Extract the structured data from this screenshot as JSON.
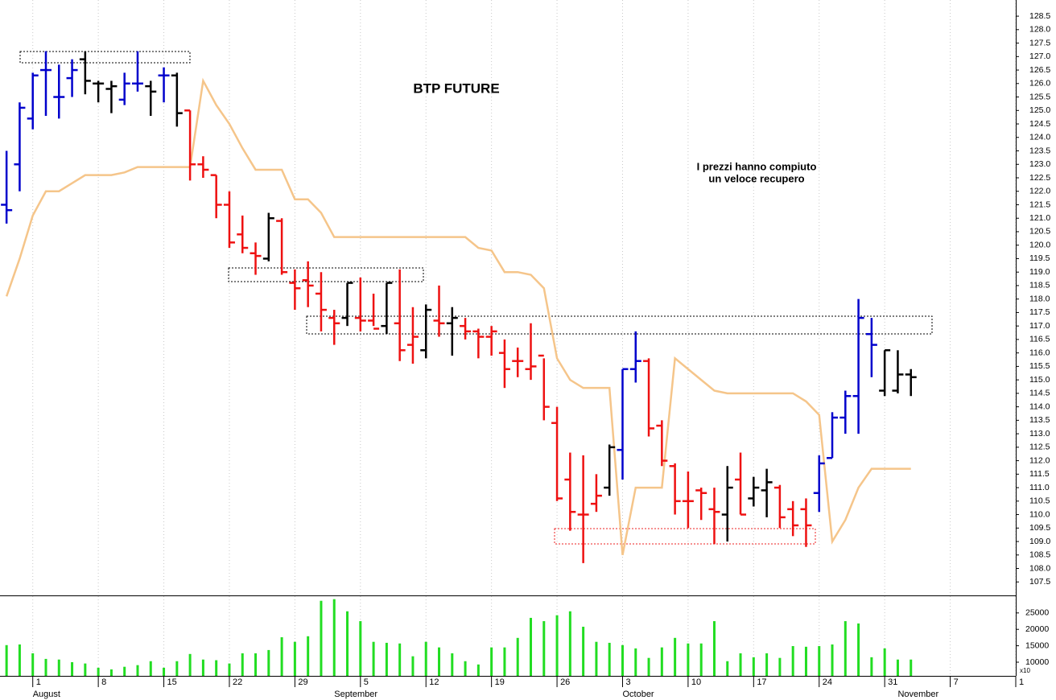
{
  "chart_data": [
    {
      "type": "ohlc",
      "title": "BTP FUTURE",
      "annotation": [
        "I prezzi hanno compiuto",
        "un veloce recupero"
      ],
      "annotation_color": "#1a1acc",
      "xlim": [
        -0.5,
        77.0
      ],
      "ylim": [
        107.0,
        129.1
      ],
      "grid": "x",
      "open": [
        121.5,
        123.0,
        124.7,
        126.5,
        125.5,
        126.2,
        126.9,
        126.0,
        125.8,
        125.4,
        126.0,
        125.9,
        126.3,
        126.3,
        125.0,
        123.0,
        122.6,
        121.5,
        120.4,
        119.7,
        119.5,
        120.9,
        118.6,
        118.7,
        118.2,
        117.3,
        117.3,
        117.3,
        117.2,
        117.0,
        117.1,
        116.3,
        116.1,
        117.2,
        117.1,
        117.0,
        116.8,
        116.6,
        116.0,
        115.7,
        115.4,
        115.9,
        113.4,
        111.3,
        110.0,
        110.4,
        111.0,
        112.4,
        115.4,
        115.7,
        113.3,
        111.8,
        110.5,
        110.9,
        110.2,
        110.0,
        111.3,
        110.6,
        110.9,
        111.0,
        110.2,
        110.2,
        110.8,
        112.1,
        113.6,
        114.4,
        116.7,
        114.6,
        114.6,
        115.2
      ],
      "high": [
        123.5,
        125.3,
        126.4,
        127.2,
        126.7,
        126.9,
        127.2,
        126.1,
        126.1,
        126.4,
        127.2,
        126.1,
        126.6,
        126.4,
        125.0,
        123.3,
        122.6,
        122.0,
        121.1,
        120.1,
        121.2,
        121.0,
        119.1,
        119.4,
        119.0,
        117.6,
        118.6,
        118.8,
        118.2,
        118.6,
        119.1,
        117.7,
        117.8,
        118.5,
        117.7,
        117.3,
        116.9,
        117.0,
        116.5,
        116.2,
        117.1,
        115.8,
        114.0,
        112.3,
        112.2,
        111.5,
        112.6,
        115.4,
        116.8,
        115.8,
        113.5,
        111.9,
        111.6,
        111.0,
        111.0,
        111.8,
        112.3,
        111.4,
        111.7,
        111.1,
        110.5,
        110.6,
        112.2,
        113.8,
        114.6,
        118.0,
        117.3,
        116.1,
        116.1,
        115.4
      ],
      "low": [
        120.8,
        122.0,
        124.3,
        124.8,
        124.7,
        125.5,
        125.6,
        125.3,
        124.9,
        125.2,
        125.7,
        124.8,
        125.3,
        124.4,
        122.4,
        122.5,
        121.0,
        119.9,
        119.7,
        118.9,
        119.4,
        118.9,
        117.6,
        117.7,
        116.8,
        116.3,
        117.0,
        116.8,
        117.0,
        116.7,
        115.7,
        115.6,
        115.8,
        116.6,
        115.9,
        116.5,
        115.8,
        115.9,
        114.7,
        115.1,
        115.0,
        113.5,
        110.5,
        109.4,
        108.2,
        110.1,
        110.7,
        111.3,
        114.9,
        112.9,
        111.8,
        110.0,
        109.5,
        109.8,
        108.9,
        109.0,
        110.0,
        110.3,
        109.9,
        109.5,
        109.2,
        108.8,
        110.1,
        112.1,
        113.0,
        113.0,
        115.1,
        114.4,
        114.5,
        114.4
      ],
      "close": [
        121.3,
        125.1,
        126.3,
        126.5,
        125.5,
        126.5,
        126.1,
        126.0,
        125.9,
        126.0,
        126.0,
        125.7,
        126.3,
        124.9,
        123.0,
        122.8,
        121.5,
        120.1,
        119.9,
        119.6,
        121.0,
        119.0,
        118.4,
        118.5,
        117.6,
        117.1,
        118.6,
        117.2,
        116.9,
        118.6,
        116.1,
        116.6,
        117.6,
        117.1,
        117.3,
        116.8,
        116.6,
        116.8,
        115.4,
        115.7,
        115.5,
        114.0,
        110.6,
        110.1,
        110.0,
        110.7,
        112.5,
        115.4,
        115.7,
        113.2,
        112.0,
        110.5,
        110.5,
        110.8,
        110.1,
        111.0,
        110.0,
        111.0,
        111.2,
        109.9,
        109.6,
        109.6,
        111.9,
        113.6,
        114.4,
        117.3,
        116.3,
        116.1,
        115.2,
        115.1
      ],
      "colors": [
        "#0000cc",
        "#0000cc",
        "#0000cc",
        "#0000cc",
        "#0000cc",
        "#0000cc",
        "#000000",
        "#000000",
        "#000000",
        "#0000cc",
        "#0000cc",
        "#000000",
        "#0000cc",
        "#000000",
        "#ee1111",
        "#ee1111",
        "#ee1111",
        "#ee1111",
        "#ee1111",
        "#ee1111",
        "#000000",
        "#ee1111",
        "#ee1111",
        "#ee1111",
        "#ee1111",
        "#ee1111",
        "#000000",
        "#ee1111",
        "#ee1111",
        "#000000",
        "#ee1111",
        "#ee1111",
        "#000000",
        "#ee1111",
        "#000000",
        "#ee1111",
        "#ee1111",
        "#ee1111",
        "#ee1111",
        "#ee1111",
        "#ee1111",
        "#ee1111",
        "#ee1111",
        "#ee1111",
        "#ee1111",
        "#ee1111",
        "#000000",
        "#0000cc",
        "#0000cc",
        "#ee1111",
        "#ee1111",
        "#ee1111",
        "#ee1111",
        "#ee1111",
        "#ee1111",
        "#000000",
        "#ee1111",
        "#000000",
        "#000000",
        "#ee1111",
        "#ee1111",
        "#ee1111",
        "#0000cc",
        "#0000cc",
        "#0000cc",
        "#0000cc",
        "#0000cc",
        "#000000",
        "#000000",
        "#000000"
      ],
      "line": {
        "color": "#f5c58a",
        "values": [
          118.1,
          119.5,
          121.1,
          122.0,
          122.0,
          122.3,
          122.6,
          122.6,
          122.6,
          122.7,
          122.9,
          122.9,
          122.9,
          122.9,
          122.9,
          126.1,
          125.2,
          124.5,
          123.6,
          122.8,
          122.8,
          122.8,
          121.7,
          121.7,
          121.2,
          120.3,
          120.3,
          120.3,
          120.3,
          120.3,
          120.3,
          120.3,
          120.3,
          120.3,
          120.3,
          120.3,
          119.9,
          119.8,
          119.0,
          119.0,
          118.9,
          118.4,
          115.8,
          115.0,
          114.7,
          114.7,
          114.7,
          108.5,
          111.0,
          111.0,
          111.0,
          115.8,
          115.4,
          115.0,
          114.6,
          114.5,
          114.5,
          114.5,
          114.5,
          114.5,
          114.5,
          114.2,
          113.7,
          109.0,
          109.8,
          111.0,
          111.7,
          111.7,
          111.7,
          111.7
        ]
      },
      "yticks": [
        107.5,
        {
          "value": 108,
          "label": "108.0"
        },
        108.5,
        {
          "value": 109,
          "label": "109.0"
        },
        109.5,
        {
          "value": 110,
          "label": "110.0"
        },
        110.5,
        {
          "value": 111,
          "label": "111.0"
        },
        111.5,
        {
          "value": 112,
          "label": "112.0"
        },
        112.5,
        {
          "value": 113,
          "label": "113.0"
        },
        113.5,
        {
          "value": 114,
          "label": "114.0"
        },
        114.5,
        {
          "value": 115,
          "label": "115.0"
        },
        115.5,
        {
          "value": 116,
          "label": "116.0"
        },
        116.5,
        {
          "value": 117,
          "label": "117.0"
        },
        117.5,
        {
          "value": 118,
          "label": "118.0"
        },
        118.5,
        {
          "value": 119,
          "label": "119.0"
        },
        119.5,
        {
          "value": 120,
          "label": "120.0"
        },
        120.5,
        {
          "value": 121,
          "label": "121.0"
        },
        121.5,
        {
          "value": 122,
          "label": "122.0"
        },
        122.5,
        {
          "value": 123,
          "label": "123.0"
        },
        123.5,
        {
          "value": 124,
          "label": "124.0"
        },
        124.5,
        {
          "value": 125,
          "label": "125.0"
        },
        125.5,
        {
          "value": 126,
          "label": "126.0"
        },
        126.5,
        {
          "value": 127,
          "label": "127.0"
        },
        127.5,
        {
          "value": 128,
          "label": "128.0"
        },
        128.5
      ]
    },
    {
      "type": "bar",
      "color": "#22dd22",
      "ylim": [
        5830,
        30100
      ],
      "yticks": [
        10000,
        15000,
        20000,
        25000
      ],
      "ylabel": "x10",
      "values": [
        15200,
        15400,
        12700,
        11000,
        10800,
        10000,
        9600,
        8300,
        7800,
        8600,
        9100,
        10300,
        8300,
        10300,
        12500,
        10800,
        10600,
        9600,
        12700,
        12700,
        13700,
        17600,
        16200,
        17900,
        28700,
        29200,
        25500,
        22500,
        16200,
        15900,
        15700,
        11800,
        16200,
        14500,
        12700,
        10300,
        9300,
        14500,
        14500,
        17400,
        23500,
        22500,
        24300,
        25500,
        20800,
        16200,
        15900,
        15200,
        14200,
        11300,
        14500,
        17400,
        15700,
        15700,
        22500,
        10300,
        12700,
        11500,
        12700,
        11300,
        14900,
        14700,
        14900,
        15400,
        22500,
        21800,
        11500,
        14200,
        10800,
        10800
      ],
      "xticks": [
        {
          "value": 2,
          "label": "1"
        },
        {
          "value": 7,
          "label": "8"
        },
        {
          "value": 12,
          "label": "15"
        },
        {
          "value": 17,
          "label": "22"
        },
        {
          "value": 22,
          "label": "29"
        },
        {
          "value": 27,
          "label": "5"
        },
        {
          "value": 32,
          "label": "12"
        },
        {
          "value": 37,
          "label": "19"
        },
        {
          "value": 42,
          "label": "26"
        },
        {
          "value": 47,
          "label": "3"
        },
        {
          "value": 52,
          "label": "10"
        },
        {
          "value": 57,
          "label": "17"
        },
        {
          "value": 62,
          "label": "24"
        },
        {
          "value": 67,
          "label": "31"
        },
        {
          "value": 72,
          "label": "7"
        },
        {
          "value": 77,
          "label": "1"
        }
      ],
      "months": [
        {
          "value": 2,
          "label": "August"
        },
        {
          "value": 25,
          "label": "September"
        },
        {
          "value": 47,
          "label": "October"
        },
        {
          "value": 68,
          "label": "November"
        }
      ]
    }
  ]
}
